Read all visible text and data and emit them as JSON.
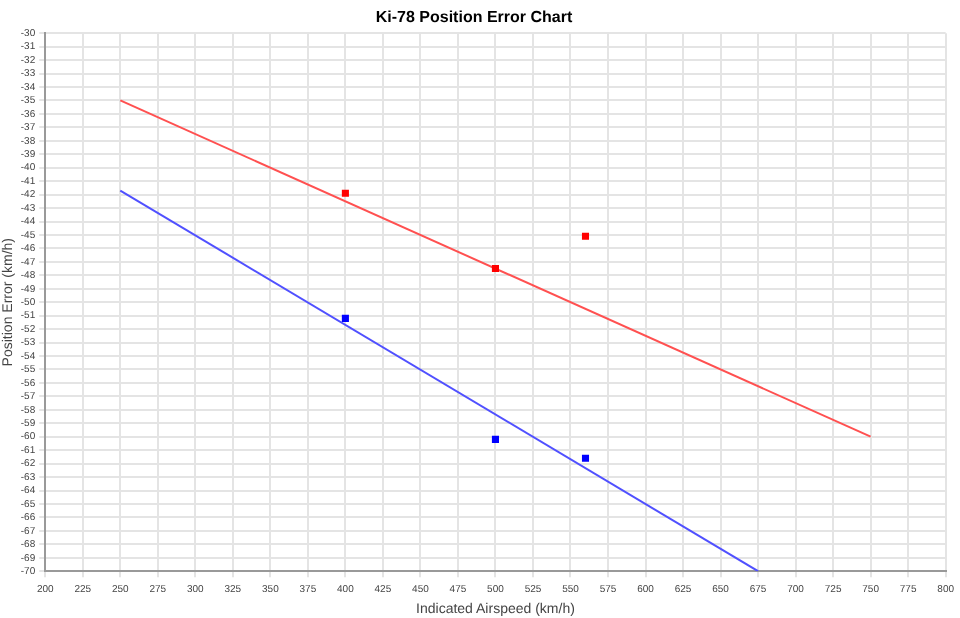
{
  "chart_data": {
    "type": "scatter",
    "title": "Ki-78 Position Error Chart",
    "xlabel": "Indicated Airspeed (km/h)",
    "ylabel": "Position Error (km/h)",
    "xlim": [
      200,
      800
    ],
    "xticks": [
      200,
      225,
      250,
      275,
      300,
      325,
      350,
      375,
      400,
      425,
      450,
      475,
      500,
      525,
      550,
      575,
      600,
      625,
      650,
      675,
      700,
      725,
      750,
      775,
      800
    ],
    "ylim": [
      -70,
      -30
    ],
    "yticks": [
      -70,
      -69,
      -68,
      -67,
      -66,
      -65,
      -64,
      -63,
      -62,
      -61,
      -60,
      -59,
      -58,
      -57,
      -56,
      -55,
      -54,
      -53,
      -52,
      -51,
      -50,
      -49,
      -48,
      -47,
      -46,
      -45,
      -44,
      -43,
      -42,
      -41,
      -40,
      -39,
      -38,
      -37,
      -36,
      -35,
      -34,
      -33,
      -32,
      -31,
      -30
    ],
    "grid": true,
    "legend": false,
    "marker": "square",
    "series": [
      {
        "type": "scatter",
        "color": "#ff0000",
        "x": [
          400,
          500,
          560
        ],
        "values": [
          -41.9,
          -47.5,
          -45.1
        ]
      },
      {
        "type": "scatter",
        "color": "#0000ff",
        "x": [
          400,
          500,
          560
        ],
        "values": [
          -51.2,
          -60.2,
          -61.6
        ]
      },
      {
        "type": "line",
        "color": "#ff5050",
        "x": [
          250,
          750
        ],
        "values": [
          -35,
          -60
        ],
        "marker": "none"
      },
      {
        "type": "line",
        "color": "#5050ff",
        "x": [
          250,
          675
        ],
        "values": [
          -41.7,
          -70
        ],
        "marker": "none"
      }
    ]
  }
}
